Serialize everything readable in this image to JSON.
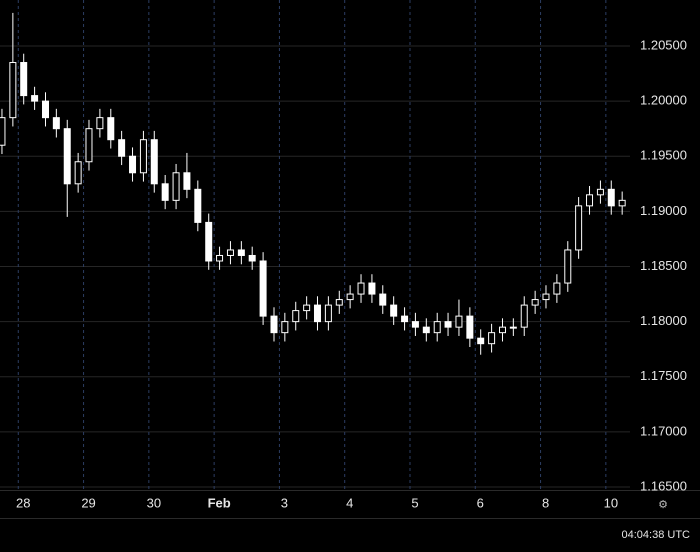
{
  "chart_data": {
    "type": "candlestick",
    "x": [
      -0.25,
      -0.083,
      0.083,
      0.25,
      0.417,
      0.583,
      0.75,
      0.917,
      1.083,
      1.25,
      1.417,
      1.583,
      1.75,
      1.917,
      2.083,
      2.25,
      2.417,
      2.583,
      2.75,
      2.917,
      3.083,
      3.25,
      3.417,
      3.583,
      3.75,
      3.917,
      4.083,
      4.25,
      4.417,
      4.583,
      4.75,
      4.917,
      5.083,
      5.25,
      5.417,
      5.583,
      5.75,
      5.917,
      6.083,
      6.25,
      6.417,
      6.583,
      6.75,
      6.917,
      7.083,
      7.25,
      7.417,
      7.583,
      7.75,
      7.917,
      8.083,
      8.25,
      8.417,
      8.583,
      8.75,
      8.917,
      9.083,
      9.25
    ],
    "open": [
      1.196,
      1.1985,
      1.2035,
      1.2005,
      1.2,
      1.1985,
      1.1975,
      1.1925,
      1.1945,
      1.1975,
      1.1985,
      1.1965,
      1.195,
      1.1935,
      1.1965,
      1.1925,
      1.191,
      1.1935,
      1.192,
      1.189,
      1.1855,
      1.186,
      1.1865,
      1.186,
      1.1855,
      1.1805,
      1.179,
      1.18,
      1.181,
      1.1815,
      1.18,
      1.1815,
      1.182,
      1.1825,
      1.1835,
      1.1825,
      1.1815,
      1.1805,
      1.18,
      1.1795,
      1.179,
      1.18,
      1.1795,
      1.1805,
      1.1785,
      1.178,
      1.179,
      1.1795,
      1.1795,
      1.1815,
      1.182,
      1.1825,
      1.1835,
      1.1865,
      1.1905,
      1.1915,
      1.192,
      1.1905
    ],
    "high": [
      1.1993,
      1.208,
      1.2043,
      1.2013,
      1.2008,
      1.1993,
      1.1983,
      1.1953,
      1.1983,
      1.1993,
      1.1993,
      1.1973,
      1.1958,
      1.1973,
      1.1973,
      1.1933,
      1.1943,
      1.1953,
      1.1928,
      1.1898,
      1.1868,
      1.1873,
      1.1873,
      1.1868,
      1.1863,
      1.1813,
      1.1808,
      1.1818,
      1.1823,
      1.1823,
      1.1823,
      1.1828,
      1.1833,
      1.1843,
      1.1843,
      1.1833,
      1.1823,
      1.1813,
      1.1808,
      1.1803,
      1.1808,
      1.1808,
      1.182,
      1.1813,
      1.1793,
      1.1798,
      1.1803,
      1.1803,
      1.1823,
      1.1828,
      1.1833,
      1.1843,
      1.1873,
      1.1913,
      1.1923,
      1.1928,
      1.1928,
      1.1918
    ],
    "low": [
      1.1952,
      1.1977,
      1.1997,
      1.1992,
      1.1977,
      1.1967,
      1.1895,
      1.1917,
      1.1937,
      1.1967,
      1.1957,
      1.1942,
      1.1927,
      1.1927,
      1.1917,
      1.1902,
      1.1902,
      1.1912,
      1.1882,
      1.1847,
      1.1847,
      1.1852,
      1.1852,
      1.1847,
      1.1797,
      1.1782,
      1.1782,
      1.1792,
      1.1802,
      1.1792,
      1.1792,
      1.1807,
      1.1812,
      1.1817,
      1.1817,
      1.1807,
      1.1797,
      1.1792,
      1.1787,
      1.1782,
      1.1782,
      1.1787,
      1.1787,
      1.1777,
      1.177,
      1.1772,
      1.1782,
      1.1787,
      1.1787,
      1.1807,
      1.1812,
      1.1817,
      1.1827,
      1.1857,
      1.1897,
      1.1907,
      1.1897,
      1.1897
    ],
    "close": [
      1.1985,
      1.2035,
      1.2005,
      1.2,
      1.1985,
      1.1975,
      1.1925,
      1.1945,
      1.1975,
      1.1985,
      1.1965,
      1.195,
      1.1935,
      1.1965,
      1.1925,
      1.191,
      1.1935,
      1.192,
      1.189,
      1.1855,
      1.186,
      1.1865,
      1.186,
      1.1855,
      1.1805,
      1.179,
      1.18,
      1.181,
      1.1815,
      1.18,
      1.1815,
      1.182,
      1.1825,
      1.1835,
      1.1825,
      1.1815,
      1.1805,
      1.18,
      1.1795,
      1.179,
      1.18,
      1.1795,
      1.1805,
      1.1785,
      1.178,
      1.179,
      1.1795,
      1.1795,
      1.1815,
      1.182,
      1.1825,
      1.1835,
      1.1865,
      1.1905,
      1.1915,
      1.192,
      1.1905,
      1.191
    ],
    "color": "#ffffff",
    "xlim": [
      -0.28,
      9.37
    ],
    "xticks": [
      {
        "value": 0,
        "label": "28"
      },
      {
        "value": 1,
        "label": "29"
      },
      {
        "value": 2,
        "label": "30"
      },
      {
        "value": 3,
        "label": "Feb"
      },
      {
        "value": 4,
        "label": "3"
      },
      {
        "value": 5,
        "label": "4"
      },
      {
        "value": 6,
        "label": "5"
      },
      {
        "value": 7,
        "label": "6"
      },
      {
        "value": 8,
        "label": "8"
      },
      {
        "value": 9,
        "label": "10"
      }
    ],
    "ylim": [
      1.16473,
      1.20917
    ],
    "yticks": [
      {
        "value": 1.165,
        "label": "1.16500"
      },
      {
        "value": 1.17,
        "label": "1.17000"
      },
      {
        "value": 1.175,
        "label": "1.17500"
      },
      {
        "value": 1.18,
        "label": "1.18000"
      },
      {
        "value": 1.185,
        "label": "1.18500"
      },
      {
        "value": 1.19,
        "label": "1.19000"
      },
      {
        "value": 1.195,
        "label": "1.19500"
      },
      {
        "value": 1.2,
        "label": "1.20000"
      },
      {
        "value": 1.205,
        "label": "1.20500"
      }
    ],
    "grid": true,
    "clock": "04:04:38 UTC"
  }
}
